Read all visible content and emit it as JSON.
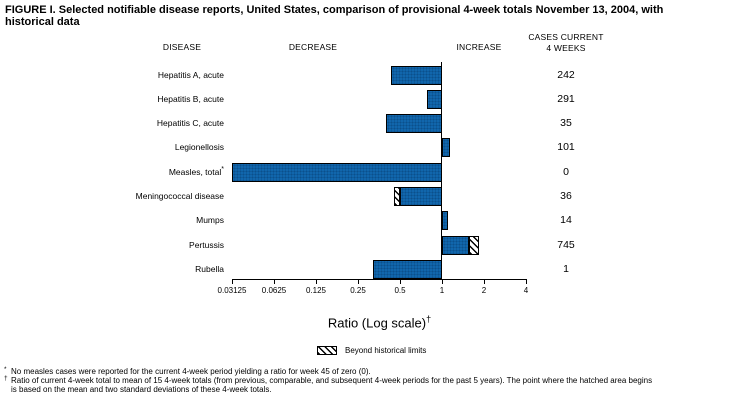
{
  "title": {
    "line1": "FIGURE I. Selected notifiable disease reports, United States, comparison of provisional 4-week totals November 13, 2004, with",
    "line2": "historical data"
  },
  "columns": {
    "disease": "DISEASE",
    "decrease": "DECREASE",
    "increase": "INCREASE",
    "cases_line1": "CASES CURRENT",
    "cases_line2": "4 WEEKS"
  },
  "chart_data": {
    "type": "bar",
    "orientation": "horizontal",
    "xlabel": "Ratio (Log scale)",
    "xlabel_marker": "†",
    "x_scale": "log2",
    "x_ticks": [
      "0.03125",
      "0.0625",
      "0.125",
      "0.25",
      "0.5",
      "1",
      "2",
      "4"
    ],
    "x_range": [
      0.03125,
      4
    ],
    "baseline": 1,
    "bar_color": "#1166ac",
    "legend": {
      "swatch": "hatched",
      "label": "Beyond historical limits"
    },
    "rows": [
      {
        "disease": "Hepatitis A, acute",
        "marker": "",
        "cases": "242",
        "ratio": 0.43
      },
      {
        "disease": "Hepatitis B, acute",
        "marker": "",
        "cases": "291",
        "ratio": 0.78
      },
      {
        "disease": "Hepatitis C, acute",
        "marker": "",
        "cases": "35",
        "ratio": 0.4
      },
      {
        "disease": "Legionellosis",
        "marker": "",
        "cases": "101",
        "ratio": 1.14
      },
      {
        "disease": "Measles, total",
        "marker": "*",
        "cases": "0",
        "ratio": 0
      },
      {
        "disease": "Meningococcal disease",
        "marker": "",
        "cases": "36",
        "ratio": 0.45,
        "historical_limit": 0.5
      },
      {
        "disease": "Mumps",
        "marker": "",
        "cases": "14",
        "ratio": 1.1
      },
      {
        "disease": "Pertussis",
        "marker": "",
        "cases": "745",
        "ratio": 1.83,
        "historical_limit": 1.56
      },
      {
        "disease": "Rubella",
        "marker": "",
        "cases": "1",
        "ratio": 0.32
      }
    ]
  },
  "footnotes": [
    {
      "marker": "*",
      "text": "No measles cases were reported for the current 4-week period yielding a ratio for week 45 of zero (0)."
    },
    {
      "marker": "†",
      "text": "Ratio of current 4-week total to mean of 15 4-week totals (from previous, comparable, and subsequent 4-week periods for the past 5 years). The point where the hatched area begins"
    },
    {
      "marker": "",
      "text": "is based on the mean and two standard deviations of these 4-week totals."
    }
  ]
}
